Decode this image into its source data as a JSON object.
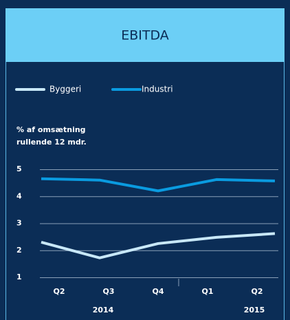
{
  "chart_data": {
    "type": "line",
    "title": "EBITDA",
    "ylabel": [
      "% af omsætning",
      "rullende 12 mdr."
    ],
    "categories": [
      "Q2",
      "Q3",
      "Q4",
      "Q1",
      "Q2"
    ],
    "x_groups": [
      "2014",
      "2015"
    ],
    "series": [
      {
        "name": "Byggeri",
        "color": "#c8e8f8",
        "values": [
          2.3,
          1.72,
          2.25,
          2.48,
          2.62
        ]
      },
      {
        "name": "Industri",
        "color": "#0a9be0",
        "values": [
          4.65,
          4.6,
          4.2,
          4.62,
          4.57
        ]
      }
    ],
    "ylim": [
      1,
      5
    ],
    "yticks": [
      1,
      2,
      3,
      4,
      5
    ],
    "grid": true
  }
}
